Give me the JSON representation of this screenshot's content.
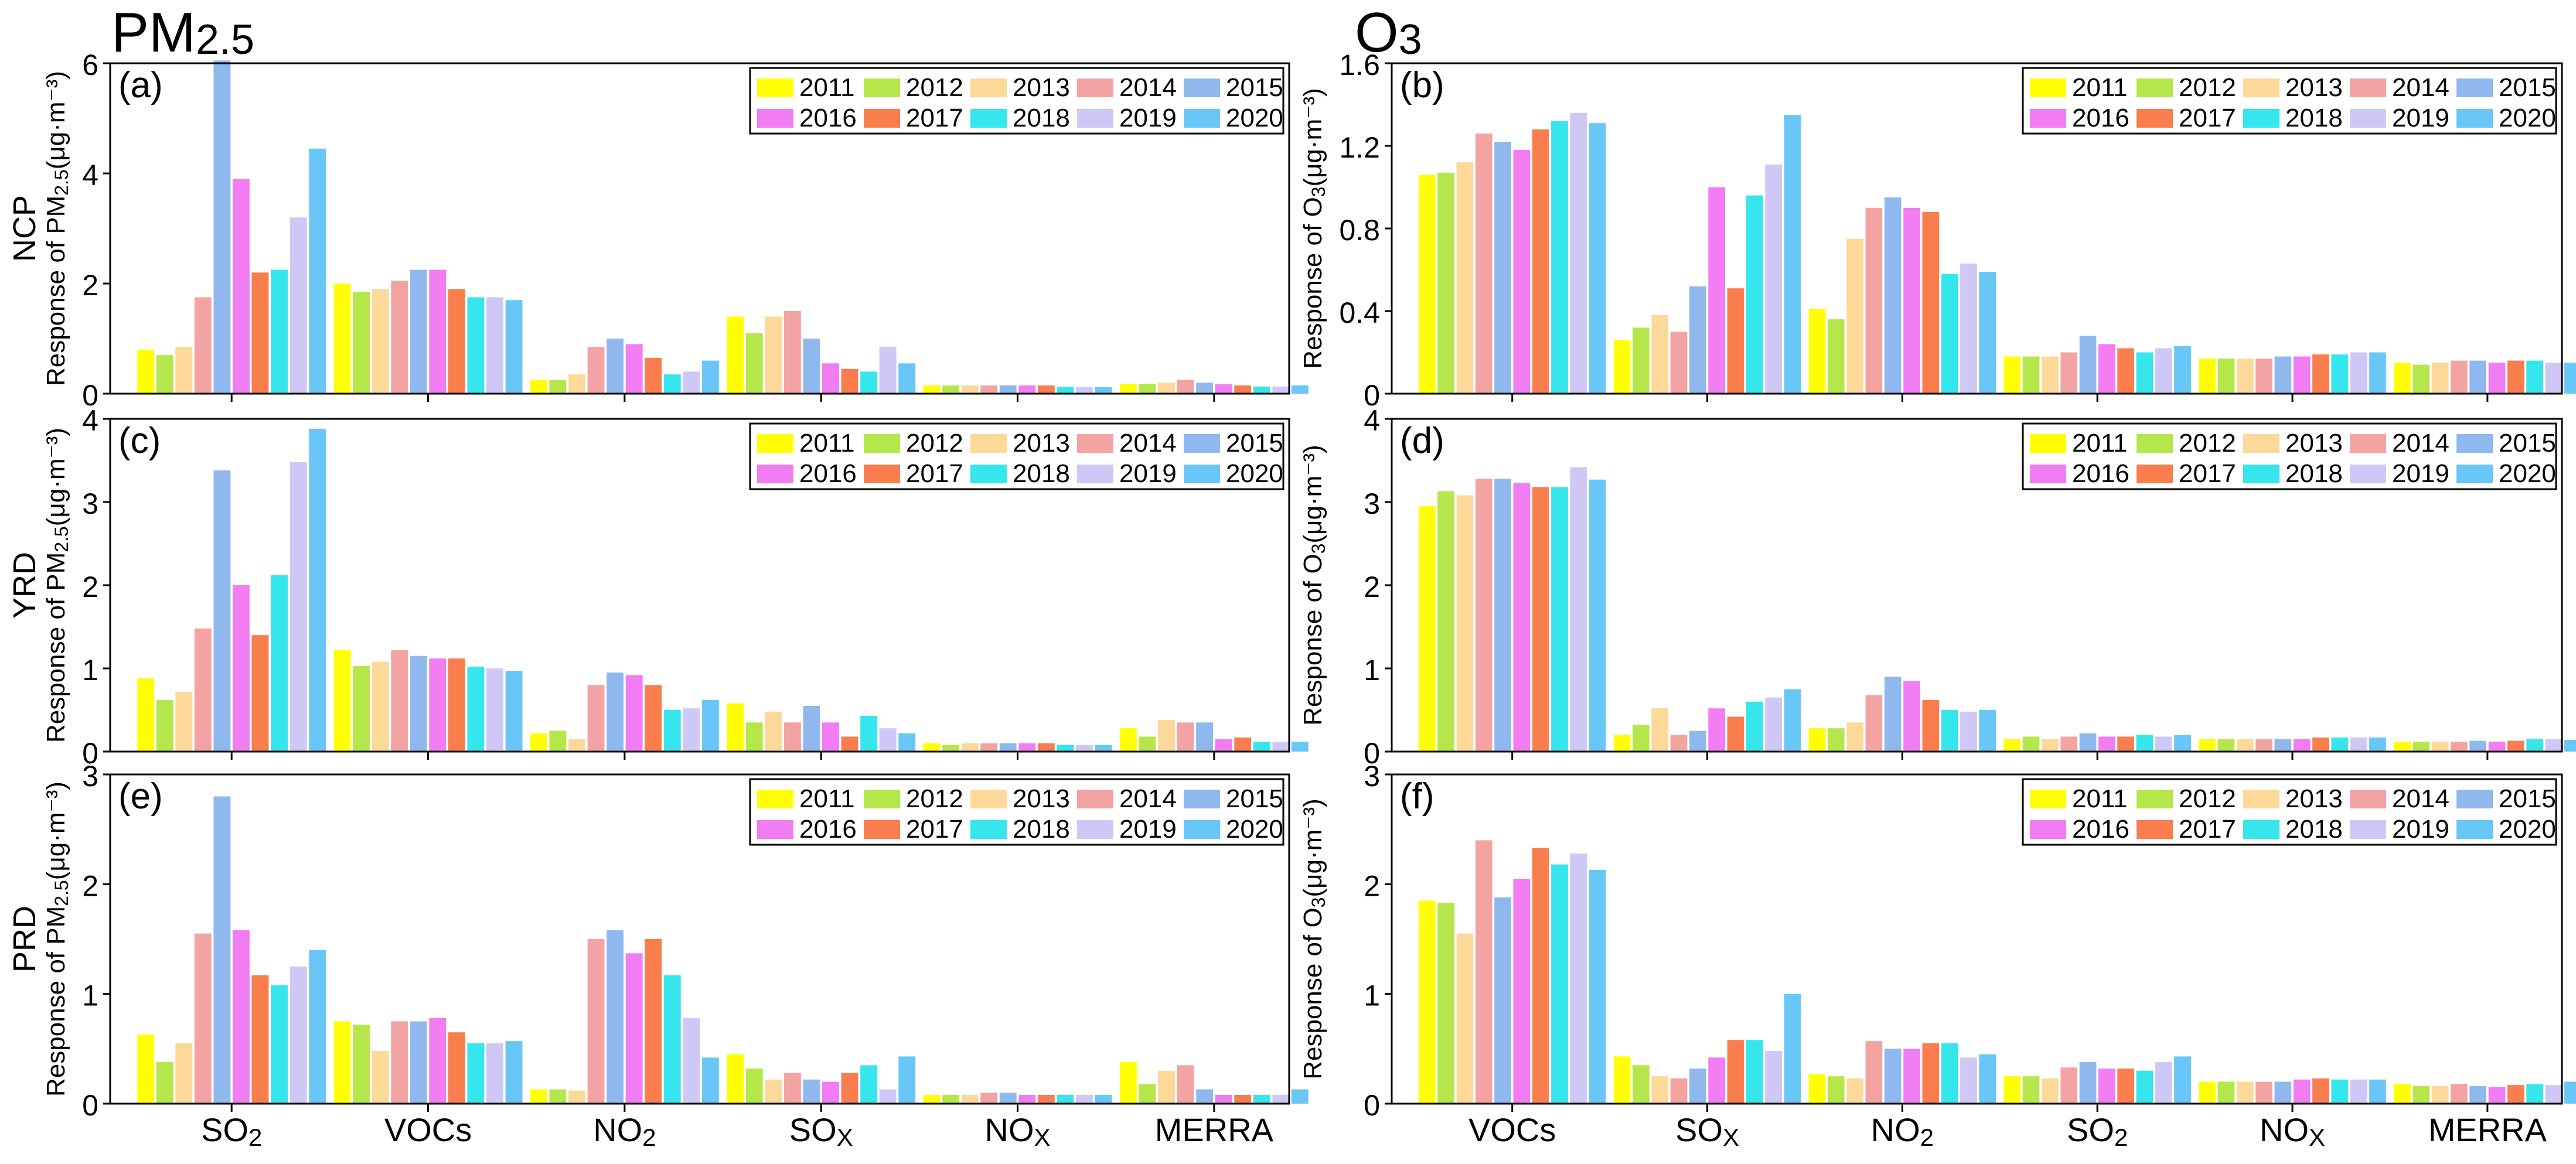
{
  "columns": [
    {
      "title": "PM",
      "title_sub": "2.5"
    },
    {
      "title": "O",
      "title_sub": "3"
    }
  ],
  "row_labels": [
    "NCP",
    "YRD",
    "PRD"
  ],
  "ylabels": {
    "pm": {
      "pre": "Response of PM",
      "sub": "2.5",
      "post": "(μg·m⁻³)"
    },
    "o3": {
      "pre": "Response of O",
      "sub": "3",
      "post": "(μg·m⁻³)"
    }
  },
  "legend": {
    "years": [
      "2011",
      "2012",
      "2013",
      "2014",
      "2015",
      "2016",
      "2017",
      "2018",
      "2019",
      "2020"
    ],
    "colors": [
      "#ffff00",
      "#b5e64a",
      "#fcd899",
      "#f4a3a3",
      "#8fb9ee",
      "#f27cf2",
      "#fa7d4d",
      "#35e6ec",
      "#cfc8f6",
      "#68c7f7"
    ]
  },
  "xlabels": {
    "pm": [
      {
        "main": "SO",
        "sub": "2",
        "subtype": "sub"
      },
      {
        "main": "VOCs",
        "sub": "",
        "subtype": "sub"
      },
      {
        "main": "NO",
        "sub": "2",
        "subtype": "sub"
      },
      {
        "main": "SO",
        "sub": "X",
        "subtype": "sub"
      },
      {
        "main": "NO",
        "sub": "X",
        "subtype": "sub"
      },
      {
        "main": "MERRA",
        "sub": "",
        "subtype": "sub"
      }
    ],
    "o3": [
      {
        "main": "VOCs",
        "sub": "",
        "subtype": "sub"
      },
      {
        "main": "SO",
        "sub": "X",
        "subtype": "sub"
      },
      {
        "main": "NO",
        "sub": "2",
        "subtype": "sub"
      },
      {
        "main": "SO",
        "sub": "2",
        "subtype": "sub"
      },
      {
        "main": "NO",
        "sub": "X",
        "subtype": "sub"
      },
      {
        "main": "MERRA",
        "sub": "",
        "subtype": "sub"
      }
    ]
  },
  "chart_data": [
    {
      "type": "bar",
      "panel": "(a)",
      "region": "NCP",
      "pollutant": "PM2.5",
      "ylim": [
        0,
        6
      ],
      "yticks": [
        0,
        2,
        4,
        6
      ],
      "categories": [
        "SO2",
        "VOCs",
        "NO2",
        "SOX",
        "NOX",
        "MERRA"
      ],
      "values": [
        [
          0.8,
          0.7,
          0.85,
          1.75,
          6.05,
          3.9,
          2.2,
          2.25,
          3.2,
          4.45
        ],
        [
          2.0,
          1.85,
          1.9,
          2.05,
          2.25,
          2.25,
          1.9,
          1.75,
          1.75,
          1.7
        ],
        [
          0.25,
          0.25,
          0.35,
          0.85,
          1.0,
          0.9,
          0.65,
          0.35,
          0.4,
          0.6
        ],
        [
          1.4,
          1.1,
          1.4,
          1.5,
          1.0,
          0.55,
          0.45,
          0.4,
          0.85,
          0.55
        ],
        [
          0.15,
          0.15,
          0.15,
          0.15,
          0.15,
          0.15,
          0.15,
          0.12,
          0.12,
          0.12
        ],
        [
          0.18,
          0.18,
          0.2,
          0.25,
          0.2,
          0.17,
          0.15,
          0.13,
          0.13,
          0.15
        ]
      ]
    },
    {
      "type": "bar",
      "panel": "(b)",
      "region": "NCP",
      "pollutant": "O3",
      "ylim": [
        0,
        1.6
      ],
      "yticks": [
        0,
        0.4,
        0.8,
        1.2,
        1.6
      ],
      "categories": [
        "VOCs",
        "SOX",
        "NO2",
        "SO2",
        "NOX",
        "MERRA"
      ],
      "values": [
        [
          1.06,
          1.07,
          1.12,
          1.26,
          1.22,
          1.18,
          1.28,
          1.32,
          1.36,
          1.31
        ],
        [
          0.26,
          0.32,
          0.38,
          0.3,
          0.52,
          1.0,
          0.51,
          0.96,
          1.11,
          1.35
        ],
        [
          0.41,
          0.36,
          0.75,
          0.9,
          0.95,
          0.9,
          0.88,
          0.58,
          0.63,
          0.59
        ],
        [
          0.18,
          0.18,
          0.18,
          0.2,
          0.28,
          0.24,
          0.22,
          0.2,
          0.22,
          0.23
        ],
        [
          0.17,
          0.17,
          0.17,
          0.17,
          0.18,
          0.18,
          0.19,
          0.19,
          0.2,
          0.2
        ],
        [
          0.15,
          0.14,
          0.15,
          0.16,
          0.16,
          0.15,
          0.16,
          0.16,
          0.15,
          0.15
        ]
      ]
    },
    {
      "type": "bar",
      "panel": "(c)",
      "region": "YRD",
      "pollutant": "PM2.5",
      "ylim": [
        0,
        4
      ],
      "yticks": [
        0,
        1,
        2,
        3,
        4
      ],
      "categories": [
        "SO2",
        "VOCs",
        "NO2",
        "SOX",
        "NOX",
        "MERRA"
      ],
      "values": [
        [
          0.88,
          0.62,
          0.72,
          1.48,
          3.38,
          2.0,
          1.4,
          2.12,
          3.48,
          3.88
        ],
        [
          1.22,
          1.03,
          1.08,
          1.22,
          1.15,
          1.12,
          1.12,
          1.02,
          1.0,
          0.97
        ],
        [
          0.22,
          0.25,
          0.15,
          0.8,
          0.95,
          0.92,
          0.8,
          0.5,
          0.52,
          0.62
        ],
        [
          0.58,
          0.35,
          0.48,
          0.35,
          0.55,
          0.35,
          0.18,
          0.43,
          0.28,
          0.22
        ],
        [
          0.1,
          0.08,
          0.1,
          0.1,
          0.1,
          0.1,
          0.1,
          0.08,
          0.08,
          0.08
        ],
        [
          0.28,
          0.18,
          0.38,
          0.35,
          0.35,
          0.15,
          0.17,
          0.12,
          0.12,
          0.12
        ]
      ]
    },
    {
      "type": "bar",
      "panel": "(d)",
      "region": "YRD",
      "pollutant": "O3",
      "ylim": [
        0,
        4
      ],
      "yticks": [
        0,
        1,
        2,
        3,
        4
      ],
      "categories": [
        "VOCs",
        "SOX",
        "NO2",
        "SO2",
        "NOX",
        "MERRA"
      ],
      "values": [
        [
          2.95,
          3.13,
          3.08,
          3.28,
          3.28,
          3.23,
          3.18,
          3.18,
          3.42,
          3.27
        ],
        [
          0.2,
          0.32,
          0.52,
          0.2,
          0.25,
          0.52,
          0.42,
          0.6,
          0.65,
          0.75
        ],
        [
          0.28,
          0.28,
          0.35,
          0.68,
          0.9,
          0.85,
          0.62,
          0.5,
          0.48,
          0.5
        ],
        [
          0.15,
          0.18,
          0.15,
          0.18,
          0.22,
          0.18,
          0.18,
          0.2,
          0.18,
          0.2
        ],
        [
          0.15,
          0.15,
          0.15,
          0.15,
          0.15,
          0.15,
          0.17,
          0.17,
          0.17,
          0.17
        ],
        [
          0.12,
          0.12,
          0.12,
          0.12,
          0.13,
          0.12,
          0.13,
          0.15,
          0.15,
          0.14
        ]
      ]
    },
    {
      "type": "bar",
      "panel": "(e)",
      "region": "PRD",
      "pollutant": "PM2.5",
      "ylim": [
        0,
        3
      ],
      "yticks": [
        0,
        1,
        2,
        3
      ],
      "categories": [
        "SO2",
        "VOCs",
        "NO2",
        "SOX",
        "NOX",
        "MERRA"
      ],
      "values": [
        [
          0.63,
          0.38,
          0.55,
          1.55,
          2.8,
          1.58,
          1.17,
          1.08,
          1.25,
          1.4
        ],
        [
          0.75,
          0.72,
          0.48,
          0.75,
          0.75,
          0.78,
          0.65,
          0.55,
          0.55,
          0.57
        ],
        [
          0.13,
          0.13,
          0.12,
          1.5,
          1.58,
          1.37,
          1.5,
          1.17,
          0.78,
          0.42
        ],
        [
          0.45,
          0.32,
          0.22,
          0.28,
          0.22,
          0.2,
          0.28,
          0.35,
          0.13,
          0.43
        ],
        [
          0.08,
          0.08,
          0.08,
          0.1,
          0.1,
          0.08,
          0.08,
          0.08,
          0.08,
          0.08
        ],
        [
          0.38,
          0.18,
          0.3,
          0.35,
          0.13,
          0.08,
          0.08,
          0.08,
          0.08,
          0.13
        ]
      ]
    },
    {
      "type": "bar",
      "panel": "(f)",
      "region": "PRD",
      "pollutant": "O3",
      "ylim": [
        0,
        3
      ],
      "yticks": [
        0,
        1,
        2,
        3
      ],
      "categories": [
        "VOCs",
        "SOX",
        "NO2",
        "SO2",
        "NOX",
        "MERRA"
      ],
      "values": [
        [
          1.85,
          1.83,
          1.55,
          2.4,
          1.88,
          2.05,
          2.33,
          2.18,
          2.28,
          2.13
        ],
        [
          0.43,
          0.35,
          0.25,
          0.23,
          0.32,
          0.42,
          0.58,
          0.58,
          0.48,
          1.0
        ],
        [
          0.27,
          0.25,
          0.23,
          0.57,
          0.5,
          0.5,
          0.55,
          0.55,
          0.42,
          0.45
        ],
        [
          0.25,
          0.25,
          0.23,
          0.33,
          0.38,
          0.32,
          0.32,
          0.3,
          0.38,
          0.43
        ],
        [
          0.2,
          0.2,
          0.2,
          0.2,
          0.2,
          0.22,
          0.23,
          0.22,
          0.22,
          0.22
        ],
        [
          0.18,
          0.16,
          0.16,
          0.18,
          0.16,
          0.15,
          0.17,
          0.18,
          0.17,
          0.2
        ]
      ]
    }
  ]
}
